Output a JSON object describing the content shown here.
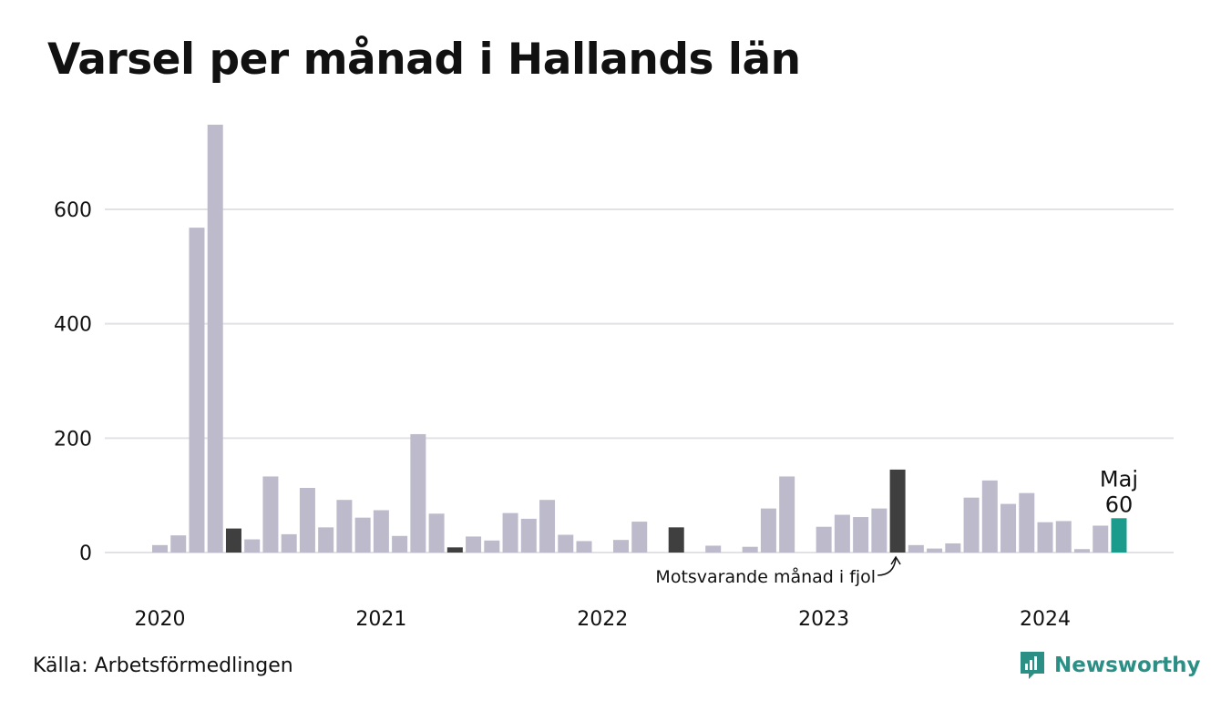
{
  "title": "Varsel per månad i Hallands län",
  "source": "Källa: Arbetsförmedlingen",
  "logo": {
    "text": "Newsworthy",
    "icon": "newsworthy-logo-icon"
  },
  "colors": {
    "bar": "#bdbbcb",
    "highlight_previous_year": "#3f3f3f",
    "highlight_current": "#1a9b8c",
    "grid": "#e2e2e6",
    "text": "#111111"
  },
  "chart_data": {
    "type": "bar",
    "title": "Varsel per månad i Hallands län",
    "xlabel": "",
    "ylabel": "",
    "ylim": [
      0,
      750
    ],
    "yticks": [
      0,
      200,
      400,
      600
    ],
    "year_labels": [
      "2020",
      "2021",
      "2022",
      "2023",
      "2024"
    ],
    "grid": true,
    "categories": [
      "2020-01",
      "2020-02",
      "2020-03",
      "2020-04",
      "2020-05",
      "2020-06",
      "2020-07",
      "2020-08",
      "2020-09",
      "2020-10",
      "2020-11",
      "2020-12",
      "2021-01",
      "2021-02",
      "2021-03",
      "2021-04",
      "2021-05",
      "2021-06",
      "2021-07",
      "2021-08",
      "2021-09",
      "2021-10",
      "2021-11",
      "2021-12",
      "2022-01",
      "2022-02",
      "2022-03",
      "2022-04",
      "2022-05",
      "2022-06",
      "2022-07",
      "2022-08",
      "2022-09",
      "2022-10",
      "2022-11",
      "2022-12",
      "2023-01",
      "2023-02",
      "2023-03",
      "2023-04",
      "2023-05",
      "2023-06",
      "2023-07",
      "2023-08",
      "2023-09",
      "2023-10",
      "2023-11",
      "2023-12",
      "2024-01",
      "2024-02",
      "2024-03",
      "2024-04",
      "2024-05"
    ],
    "values": [
      13,
      30,
      568,
      748,
      42,
      23,
      133,
      32,
      113,
      44,
      92,
      61,
      74,
      29,
      207,
      68,
      9,
      28,
      21,
      69,
      59,
      92,
      31,
      20,
      0,
      22,
      54,
      0,
      44,
      0,
      12,
      0,
      10,
      77,
      133,
      0,
      45,
      66,
      62,
      77,
      145,
      13,
      7,
      16,
      96,
      126,
      85,
      104,
      53,
      55,
      6,
      47,
      60
    ],
    "highlight_previous_year_indices": [
      4,
      16,
      28,
      40
    ],
    "highlight_current_index": 52,
    "annotations": {
      "current_month": "Maj",
      "current_value": "60",
      "previous_year": "Motsvarande månad i fjol"
    }
  }
}
